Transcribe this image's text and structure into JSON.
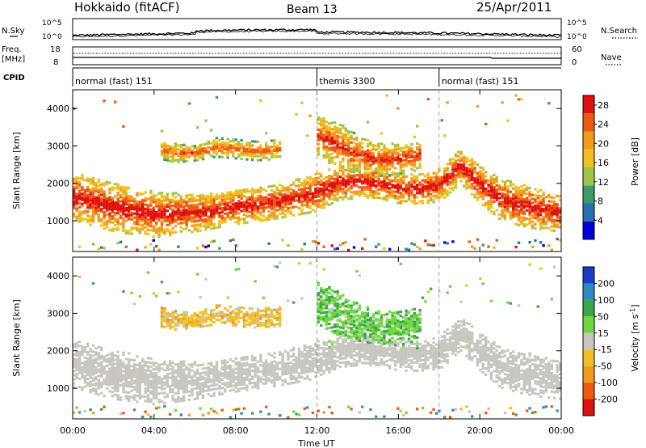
{
  "header": {
    "site": "Hokkaido (fitACF)",
    "beam": "Beam 13",
    "date": "25/Apr/2011"
  },
  "panels": {
    "nsky": {
      "label": "N.Sky",
      "tick_top": "10^5",
      "tick_bottom": "10^0"
    },
    "nsearch": {
      "label": "N.Search",
      "tick_top": "10^5",
      "tick_bottom": "10^0"
    },
    "freq": {
      "label_line1": "Freq.",
      "label_line2": "[MHz]",
      "tick_top": "18",
      "tick_bottom": "8"
    },
    "nave": {
      "label": "Nave",
      "tick_top": "60",
      "tick_bottom": "0"
    },
    "cpid": {
      "label": "CPID",
      "modes": [
        {
          "name": "normal (fast) 151",
          "start": 0,
          "end": 12
        },
        {
          "name": "themis 3300",
          "start": 12,
          "end": 18
        },
        {
          "name": "normal (fast) 151",
          "start": 18,
          "end": 24
        }
      ]
    }
  },
  "chart_data": [
    {
      "type": "heatmap",
      "title": "",
      "ylabel": "Slant Range [km]",
      "xlabel": "",
      "xlim": [
        0,
        24
      ],
      "ylim": [
        180,
        4500
      ],
      "y_ticks": [
        "1000",
        "2000",
        "3000",
        "4000"
      ],
      "colorbar": {
        "label": "Power [dB]",
        "ticks": [
          "4",
          "8",
          "12",
          "16",
          "20",
          "24",
          "28"
        ],
        "colors": [
          "#0000dd",
          "#2a6fb0",
          "#3f9a6a",
          "#9ec44a",
          "#f0c020",
          "#f39a1c",
          "#ee5a12",
          "#e01010"
        ],
        "range": [
          0,
          30
        ]
      },
      "bands": [
        {
          "name": "main",
          "hours": [
            0,
            2,
            4,
            6,
            8,
            10,
            12,
            13,
            14,
            15,
            16,
            17,
            18,
            19,
            20,
            21,
            22,
            23,
            24
          ],
          "range_km": [
            1700,
            1400,
            1200,
            1250,
            1400,
            1550,
            1800,
            2050,
            2100,
            2050,
            1900,
            1900,
            2000,
            2500,
            2000,
            1600,
            1450,
            1350,
            1250
          ],
          "width_km": [
            650,
            650,
            600,
            500,
            450,
            450,
            500,
            450,
            450,
            400,
            400,
            400,
            450,
            450,
            500,
            550,
            550,
            550,
            500
          ],
          "level": 23
        },
        {
          "name": "upper-arc",
          "hours": [
            4.2,
            5,
            6,
            7,
            8,
            9,
            10.2
          ],
          "range_km": [
            2950,
            2850,
            2850,
            3000,
            2950,
            2900,
            2950
          ],
          "width_km": [
            250,
            250,
            200,
            250,
            250,
            250,
            250
          ],
          "level": 19
        },
        {
          "name": "themis-upper",
          "hours": [
            12,
            13,
            14,
            15,
            16,
            17
          ],
          "range_km": [
            3300,
            3050,
            2800,
            2650,
            2700,
            2800
          ],
          "width_km": [
            550,
            600,
            500,
            450,
            400,
            400
          ],
          "level": 21
        }
      ]
    },
    {
      "type": "heatmap",
      "title": "",
      "ylabel": "Slant Range [km]",
      "xlabel": "Time UT",
      "xlim": [
        0,
        24
      ],
      "ylim": [
        180,
        4500
      ],
      "x_ticks": [
        "00:00",
        "04:00",
        "08:00",
        "12:00",
        "16:00",
        "20:00",
        "00:00"
      ],
      "y_ticks": [
        "1000",
        "2000",
        "3000",
        "4000"
      ],
      "colorbar": {
        "label": "Velocity [m s^-1]",
        "ticks": [
          "200",
          "100",
          "50",
          "15",
          "-15",
          "-50",
          "-100",
          "-200"
        ],
        "colors": [
          "#1a3cc8",
          "#2a8cbf",
          "#38a84b",
          "#6ed83c",
          "#c8c6be",
          "#f0c020",
          "#f39a1c",
          "#ee5a12",
          "#e01010"
        ]
      },
      "bands": [
        {
          "name": "main",
          "hours": [
            0,
            2,
            4,
            6,
            8,
            10,
            12,
            13,
            14,
            15,
            16,
            17,
            18,
            19,
            20,
            21,
            22,
            23,
            24
          ],
          "range_km": [
            1700,
            1400,
            1200,
            1250,
            1400,
            1550,
            1800,
            2050,
            2100,
            2050,
            1900,
            1900,
            2000,
            2500,
            2000,
            1600,
            1450,
            1350,
            1250
          ],
          "width_km": [
            650,
            650,
            600,
            500,
            450,
            450,
            500,
            450,
            450,
            400,
            400,
            400,
            450,
            450,
            500,
            550,
            550,
            550,
            500
          ],
          "velocity": 0
        },
        {
          "name": "upper-arc",
          "hours": [
            4.2,
            5,
            6,
            7,
            8,
            9,
            10.2
          ],
          "range_km": [
            2950,
            2850,
            2850,
            3000,
            2950,
            2900,
            2950
          ],
          "width_km": [
            250,
            250,
            200,
            250,
            250,
            250,
            250
          ],
          "velocity": -30
        },
        {
          "name": "themis-upper",
          "hours": [
            12,
            13,
            14,
            15,
            16,
            17
          ],
          "range_km": [
            3300,
            3050,
            2800,
            2650,
            2700,
            2800
          ],
          "width_km": [
            550,
            600,
            500,
            450,
            400,
            400
          ],
          "velocity": 40
        }
      ]
    }
  ]
}
